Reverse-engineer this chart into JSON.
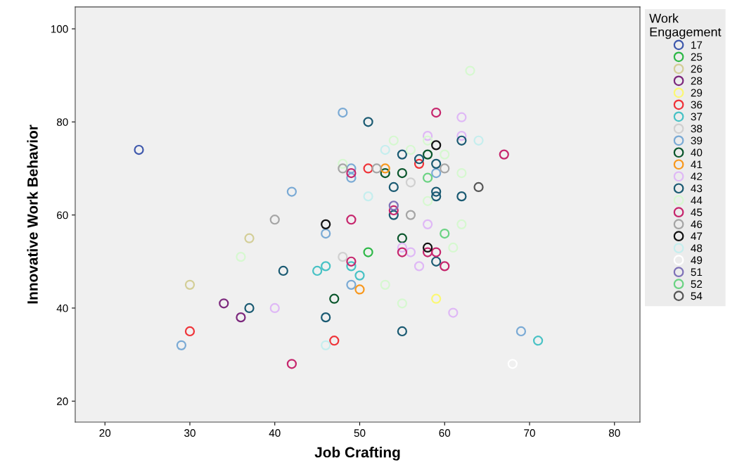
{
  "chart_data": {
    "type": "scatter",
    "xlabel": "Job Crafting",
    "ylabel": "Innovative Work Behavior",
    "legend_title": "Work\nEngagement",
    "xlim": [
      16.5,
      83
    ],
    "ylim": [
      15.5,
      104.7
    ],
    "xticks": [
      20,
      30,
      40,
      50,
      60,
      70,
      80
    ],
    "yticks": [
      20,
      40,
      60,
      80,
      100
    ],
    "grid": false,
    "legend": "right",
    "marker": "circle",
    "series": [
      {
        "name": "17",
        "color": "#3e58ac",
        "x": [
          24
        ],
        "values": [
          74
        ]
      },
      {
        "name": "25",
        "color": "#2eb848",
        "x": [
          51
        ],
        "values": [
          52
        ]
      },
      {
        "name": "26",
        "color": "#d3ce97",
        "x": [
          37,
          30
        ],
        "values": [
          55,
          45
        ]
      },
      {
        "name": "28",
        "color": "#7c287d",
        "x": [
          34,
          36
        ],
        "values": [
          41,
          38
        ]
      },
      {
        "name": "29",
        "color": "#fbf873",
        "x": [
          59
        ],
        "values": [
          42
        ]
      },
      {
        "name": "36",
        "color": "#ef3338",
        "x": [
          30,
          47,
          51,
          57
        ],
        "values": [
          35,
          33,
          70,
          71
        ]
      },
      {
        "name": "37",
        "color": "#48c2c5",
        "x": [
          45,
          46,
          49,
          50,
          71
        ],
        "values": [
          48,
          49,
          49,
          47,
          33
        ]
      },
      {
        "name": "38",
        "color": "#d0d0d0",
        "x": [
          48,
          56
        ],
        "values": [
          51,
          67
        ]
      },
      {
        "name": "39",
        "color": "#7aaad5",
        "x": [
          42,
          48,
          49,
          49,
          46,
          49,
          29,
          59,
          69
        ],
        "values": [
          65,
          82,
          68,
          70,
          56,
          45,
          32,
          69,
          35
        ]
      },
      {
        "name": "40",
        "color": "#0a562c",
        "x": [
          53,
          55,
          58,
          55,
          47
        ],
        "values": [
          69,
          69,
          73,
          55,
          42
        ]
      },
      {
        "name": "41",
        "color": "#f8981d",
        "x": [
          53,
          50
        ],
        "values": [
          70,
          44
        ]
      },
      {
        "name": "42",
        "color": "#dfb8f6",
        "x": [
          58,
          62,
          62,
          58,
          56,
          55,
          57,
          40,
          61
        ],
        "values": [
          77,
          81,
          77,
          58,
          52,
          53,
          49,
          40,
          39
        ]
      },
      {
        "name": "43",
        "color": "#1a5a72",
        "x": [
          51,
          55,
          57,
          59,
          62,
          54,
          59,
          59,
          62,
          54,
          41,
          37,
          46,
          59,
          55
        ],
        "values": [
          80,
          73,
          72,
          71,
          76,
          66,
          65,
          64,
          64,
          60,
          48,
          40,
          38,
          50,
          35
        ]
      },
      {
        "name": "44",
        "color": "#d6f8d0",
        "x": [
          63,
          48,
          54,
          56,
          60,
          62,
          58,
          62,
          61,
          53,
          55,
          36,
          58
        ],
        "values": [
          91,
          71,
          76,
          74,
          73,
          69,
          63,
          58,
          53,
          45,
          41,
          51,
          76
        ]
      },
      {
        "name": "45",
        "color": "#c6266d",
        "x": [
          59,
          67,
          49,
          54,
          49,
          49,
          55,
          58,
          59,
          60,
          42
        ],
        "values": [
          82,
          73,
          69,
          61,
          59,
          50,
          52,
          52,
          52,
          49,
          28
        ]
      },
      {
        "name": "46",
        "color": "#a5a5a5",
        "x": [
          40,
          48,
          52,
          56,
          60
        ],
        "values": [
          59,
          70,
          70,
          60,
          70
        ]
      },
      {
        "name": "47",
        "color": "#111111",
        "x": [
          59,
          46,
          58
        ],
        "values": [
          75,
          58,
          53
        ]
      },
      {
        "name": "48",
        "color": "#c5eeee",
        "x": [
          51,
          53,
          64,
          46
        ],
        "values": [
          64,
          74,
          76,
          32
        ]
      },
      {
        "name": "49",
        "color": "#ffffff",
        "x": [
          68
        ],
        "values": [
          28
        ]
      },
      {
        "name": "51",
        "color": "#7f72b8",
        "x": [
          54
        ],
        "values": [
          62
        ]
      },
      {
        "name": "52",
        "color": "#6bd383",
        "x": [
          58,
          60
        ],
        "values": [
          68,
          56
        ]
      },
      {
        "name": "54",
        "color": "#555555",
        "x": [
          64
        ],
        "values": [
          66
        ]
      }
    ]
  }
}
